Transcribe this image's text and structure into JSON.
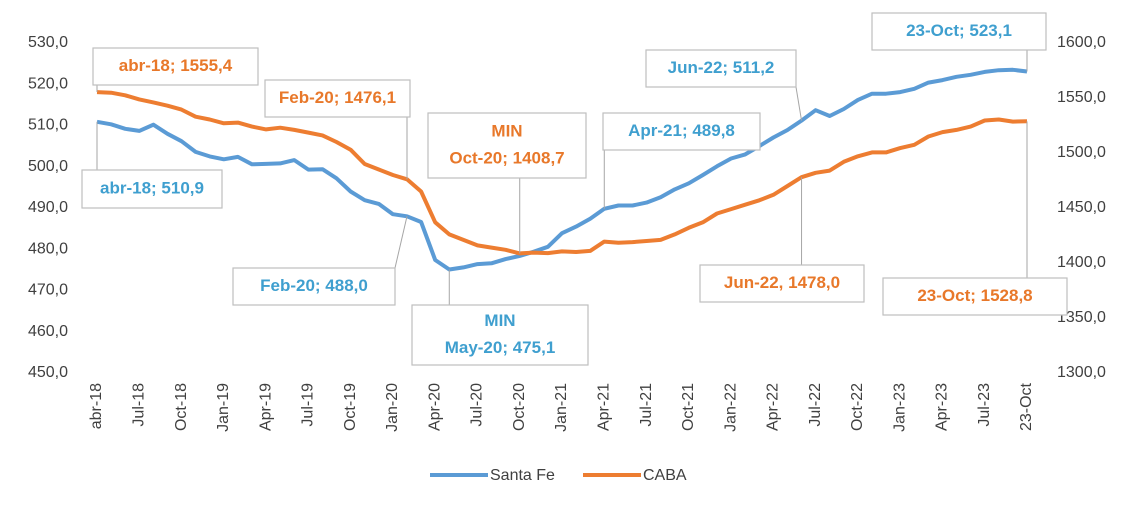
{
  "chart_data": {
    "type": "line",
    "categories": [
      "abr-18",
      null,
      null,
      "Jul-18",
      null,
      null,
      "Oct-18",
      null,
      null,
      "Jan-19",
      null,
      null,
      "Apr-19",
      null,
      null,
      "Jul-19",
      null,
      null,
      "Oct-19",
      null,
      null,
      "Jan-20",
      null,
      null,
      "Apr-20",
      null,
      null,
      "Jul-20",
      null,
      null,
      "Oct-20",
      null,
      null,
      "Jan-21",
      null,
      null,
      "Apr-21",
      null,
      null,
      "Jul-21",
      null,
      null,
      "Oct-21",
      null,
      null,
      "Jan-22",
      null,
      null,
      "Apr-22",
      null,
      null,
      "Jul-22",
      null,
      null,
      "Oct-22",
      null,
      null,
      "Jan-23",
      null,
      null,
      "Apr-23",
      null,
      null,
      "Jul-23",
      null,
      null,
      "23-Oct"
    ],
    "series": [
      {
        "name": "Santa Fe",
        "color": "#5b9bd5",
        "values": [
          510.9,
          510.3,
          509.2,
          508.7,
          510.2,
          508.0,
          506.2,
          503.6,
          502.5,
          501.8,
          502.4,
          500.6,
          500.7,
          500.8,
          501.6,
          499.3,
          499.4,
          497.2,
          494.0,
          491.9,
          491.0,
          488.5,
          488.0,
          486.6,
          477.4,
          475.1,
          475.6,
          476.4,
          476.6,
          477.6,
          478.4,
          479.4,
          480.6,
          483.9,
          485.5,
          487.4,
          489.8,
          490.6,
          490.6,
          491.3,
          492.6,
          494.5,
          496.0,
          498.0,
          500.1,
          502.0,
          503.0,
          505.0,
          507.1,
          508.9,
          511.2,
          513.7,
          512.3,
          514.0,
          516.2,
          517.7,
          517.7,
          518.1,
          518.9,
          520.4,
          521.0,
          521.8,
          522.3,
          523.0,
          523.4,
          523.5,
          523.1
        ]
      },
      {
        "name": "CABA",
        "color": "#ed7d31",
        "axis": "y2",
        "values": [
          1555.4,
          1554.8,
          1552.5,
          1548.7,
          1546.0,
          1543.0,
          1539.5,
          1533.0,
          1530.5,
          1527.0,
          1527.6,
          1524.0,
          1521.5,
          1523.0,
          1521.0,
          1518.5,
          1516.0,
          1510.0,
          1503.0,
          1490.0,
          1485.0,
          1480.0,
          1476.1,
          1465.0,
          1437.0,
          1426.0,
          1421.0,
          1416.0,
          1414.0,
          1412.0,
          1408.7,
          1409.5,
          1409.0,
          1410.5,
          1410.0,
          1411.0,
          1419.5,
          1418.5,
          1419.0,
          1420.0,
          1421.0,
          1426.0,
          1432.0,
          1437.0,
          1445.0,
          1449.0,
          1453.0,
          1457.0,
          1462.0,
          1470.0,
          1478.0,
          1482.0,
          1484.0,
          1492.0,
          1497.0,
          1500.5,
          1500.5,
          1504.5,
          1507.5,
          1515.0,
          1519.0,
          1521.0,
          1524.0,
          1529.5,
          1530.5,
          1528.5,
          1528.8
        ]
      }
    ],
    "ylim": [
      450,
      530
    ],
    "yticks": [
      {
        "value": 450,
        "label": "450,0"
      },
      {
        "value": 460,
        "label": "460,0"
      },
      {
        "value": 470,
        "label": "470,0"
      },
      {
        "value": 480,
        "label": "480,0"
      },
      {
        "value": 490,
        "label": "490,0"
      },
      {
        "value": 500,
        "label": "500,0"
      },
      {
        "value": 510,
        "label": "510,0"
      },
      {
        "value": 520,
        "label": "520,0"
      },
      {
        "value": 530,
        "label": "530,0"
      }
    ],
    "y2lim": [
      1300,
      1600
    ],
    "y2ticks": [
      {
        "value": 1300,
        "label": "1300,0"
      },
      {
        "value": 1350,
        "label": "1350,0"
      },
      {
        "value": 1400,
        "label": "1400,0"
      },
      {
        "value": 1450,
        "label": "1450,0"
      },
      {
        "value": 1500,
        "label": "1500,0"
      },
      {
        "value": 1550,
        "label": "1550,0"
      },
      {
        "value": 1600,
        "label": "1600,0"
      }
    ],
    "legend": "bottom",
    "annotations": [
      {
        "lines": [
          "abr-18; 510,9"
        ],
        "color": "#3f9fcf"
      },
      {
        "lines": [
          "Feb-20; 488,0"
        ],
        "color": "#3f9fcf"
      },
      {
        "lines": [
          "MIN",
          "May-20; 475,1"
        ],
        "color": "#3f9fcf"
      },
      {
        "lines": [
          "Apr-21; 489,8"
        ],
        "color": "#3f9fcf"
      },
      {
        "lines": [
          "Jun-22; 511,2"
        ],
        "color": "#3f9fcf"
      },
      {
        "lines": [
          "23-Oct; 523,1"
        ],
        "color": "#3f9fcf"
      },
      {
        "lines": [
          "abr-18; 1555,4"
        ],
        "color": "#e8782a"
      },
      {
        "lines": [
          "Feb-20; 1476,1"
        ],
        "color": "#e8782a"
      },
      {
        "lines": [
          "MIN",
          "Oct-20; 1408,7"
        ],
        "color": "#e8782a"
      },
      {
        "lines": [
          "Jun-22, 1478,0"
        ],
        "color": "#e8782a"
      },
      {
        "lines": [
          "23-Oct; 1528,8"
        ],
        "color": "#e8782a"
      }
    ]
  }
}
